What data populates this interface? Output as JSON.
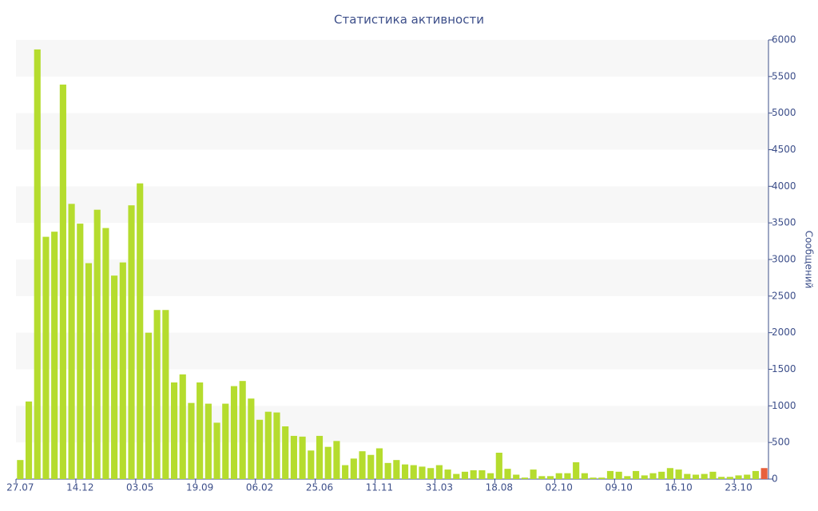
{
  "chart_data": {
    "type": "bar",
    "title": "Статистика активности",
    "y_label": "Сообщений",
    "categories": [
      "27.07",
      null,
      null,
      null,
      null,
      null,
      null,
      "14.12",
      null,
      null,
      null,
      null,
      null,
      null,
      "03.05",
      null,
      null,
      null,
      null,
      null,
      null,
      "19.09",
      null,
      null,
      null,
      null,
      null,
      null,
      "06.02",
      null,
      null,
      null,
      null,
      null,
      null,
      "25.06",
      null,
      null,
      null,
      null,
      null,
      null,
      "11.11",
      null,
      null,
      null,
      null,
      null,
      null,
      "31.03",
      null,
      null,
      null,
      null,
      null,
      null,
      "18.08",
      null,
      null,
      null,
      null,
      null,
      null,
      "02.10",
      null,
      null,
      null,
      null,
      null,
      null,
      "09.10",
      null,
      null,
      null,
      null,
      null,
      null,
      "16.10",
      null,
      null,
      null,
      null,
      null,
      null,
      "23.10",
      null,
      null,
      null
    ],
    "values": [
      260,
      1060,
      5870,
      3310,
      3380,
      5390,
      3760,
      3490,
      2950,
      3680,
      3430,
      2780,
      2960,
      3740,
      4040,
      2000,
      2310,
      2310,
      1320,
      1430,
      1040,
      1320,
      1030,
      770,
      1030,
      1270,
      1340,
      1100,
      810,
      920,
      910,
      720,
      590,
      580,
      390,
      590,
      440,
      520,
      190,
      280,
      380,
      330,
      420,
      220,
      260,
      200,
      190,
      170,
      150,
      190,
      130,
      70,
      100,
      120,
      120,
      80,
      360,
      140,
      60,
      20,
      130,
      40,
      40,
      80,
      80,
      230,
      80,
      20,
      20,
      110,
      100,
      40,
      110,
      50,
      80,
      100,
      150,
      130,
      70,
      60,
      70,
      100,
      30,
      30,
      50,
      60,
      110,
      150
    ],
    "color": "#b5dc2e",
    "last_color": "#e8603c",
    "ylim": [
      0,
      6000
    ],
    "yticks": [
      0,
      500,
      1000,
      1500,
      2000,
      2500,
      3000,
      3500,
      4000,
      4500,
      5000,
      5500,
      6000
    ],
    "grid": "bands",
    "y_axis_side": "right"
  }
}
